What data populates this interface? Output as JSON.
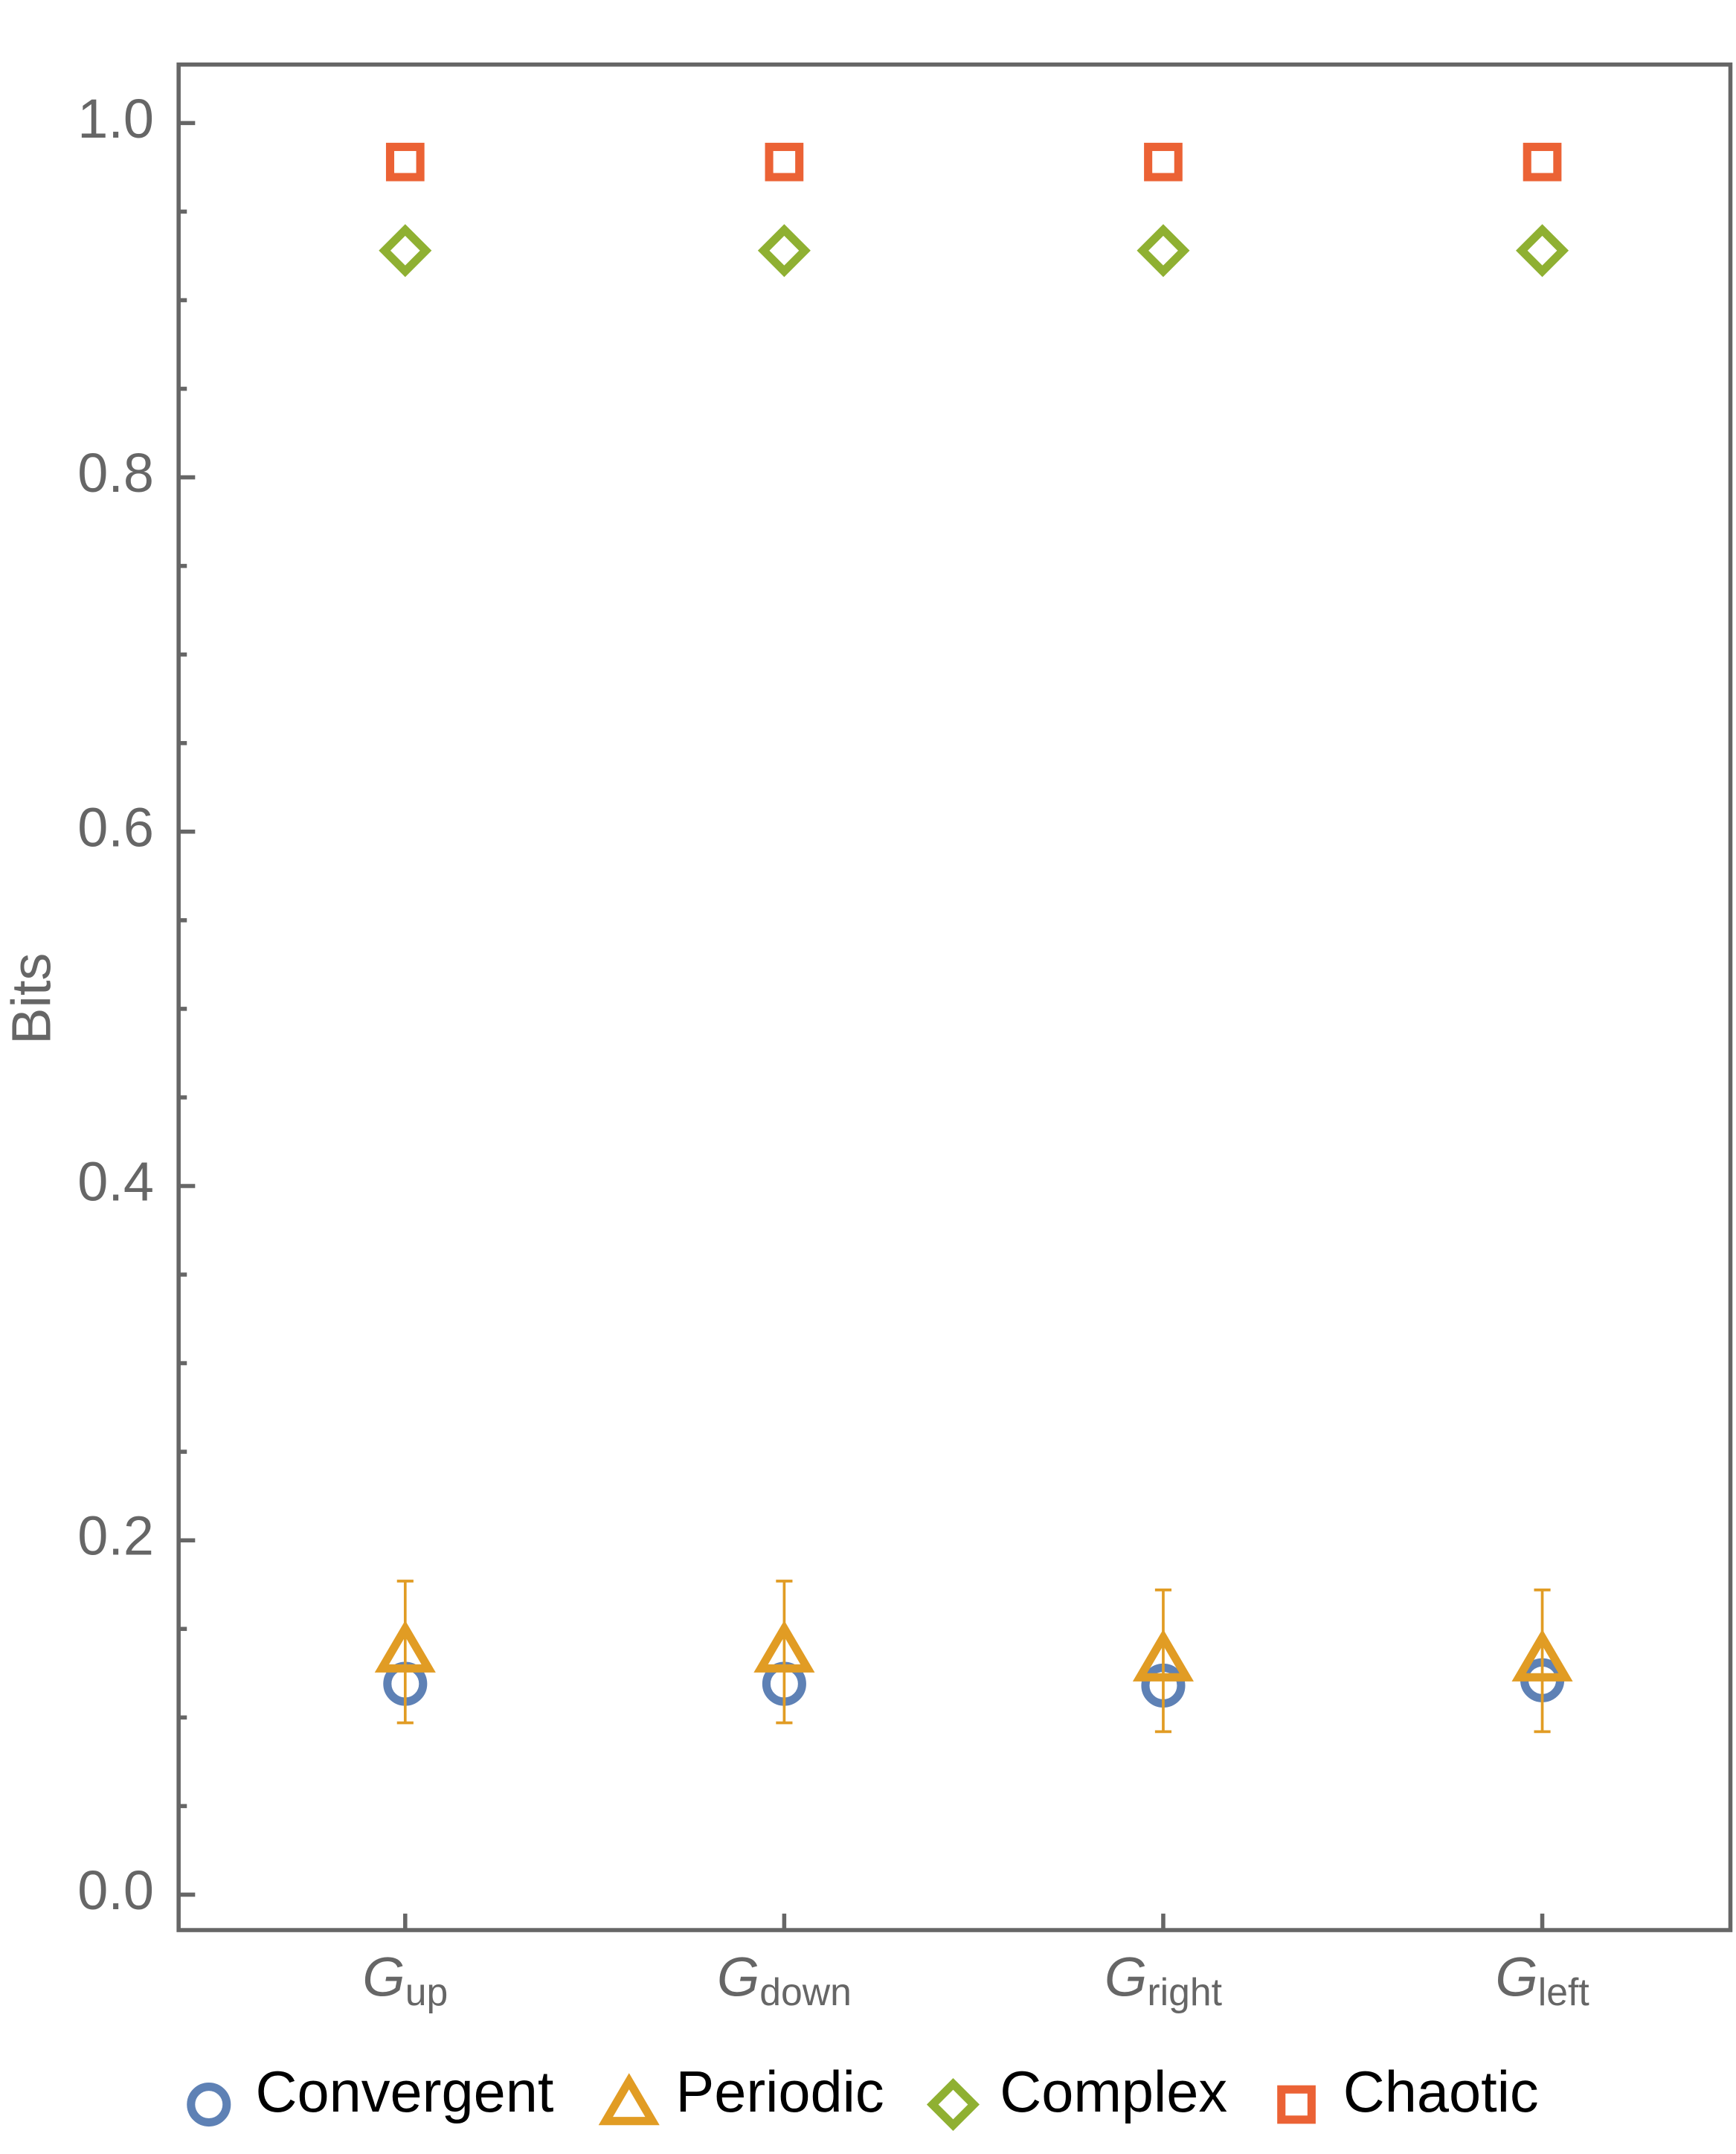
{
  "chart_data": {
    "type": "scatter",
    "y_label": "Bits",
    "category_symbol": "G",
    "categories": [
      "up",
      "down",
      "right",
      "left"
    ],
    "series": [
      {
        "name": "Convergent",
        "color": "#5e81b5",
        "marker": "circle",
        "values": [
          0.119,
          0.119,
          0.118,
          0.121
        ]
      },
      {
        "name": "Periodic",
        "color": "#e19c24",
        "marker": "triangle",
        "values": [
          0.137,
          0.137,
          0.132,
          0.132
        ],
        "errors": [
          0.04,
          0.04,
          0.04,
          0.04
        ]
      },
      {
        "name": "Complex",
        "color": "#8fb032",
        "marker": "diamond",
        "values": [
          0.928,
          0.928,
          0.928,
          0.928
        ]
      },
      {
        "name": "Chaotic",
        "color": "#eb6235",
        "marker": "square",
        "values": [
          0.978,
          0.978,
          0.978,
          0.978
        ]
      }
    ],
    "ylim": [
      -0.02,
      1.033
    ],
    "yticks": [
      {
        "value": 0,
        "label": "0.0"
      },
      0.2,
      0.4,
      0.6,
      0.8,
      {
        "value": 1,
        "label": "1.0"
      }
    ],
    "yticks_minor": [
      0.05,
      0.1,
      0.15,
      0.25,
      0.3,
      0.35,
      0.45,
      0.5,
      0.55,
      0.65,
      0.7,
      0.75,
      0.85,
      0.9,
      0.95
    ],
    "legend": "bottom"
  }
}
